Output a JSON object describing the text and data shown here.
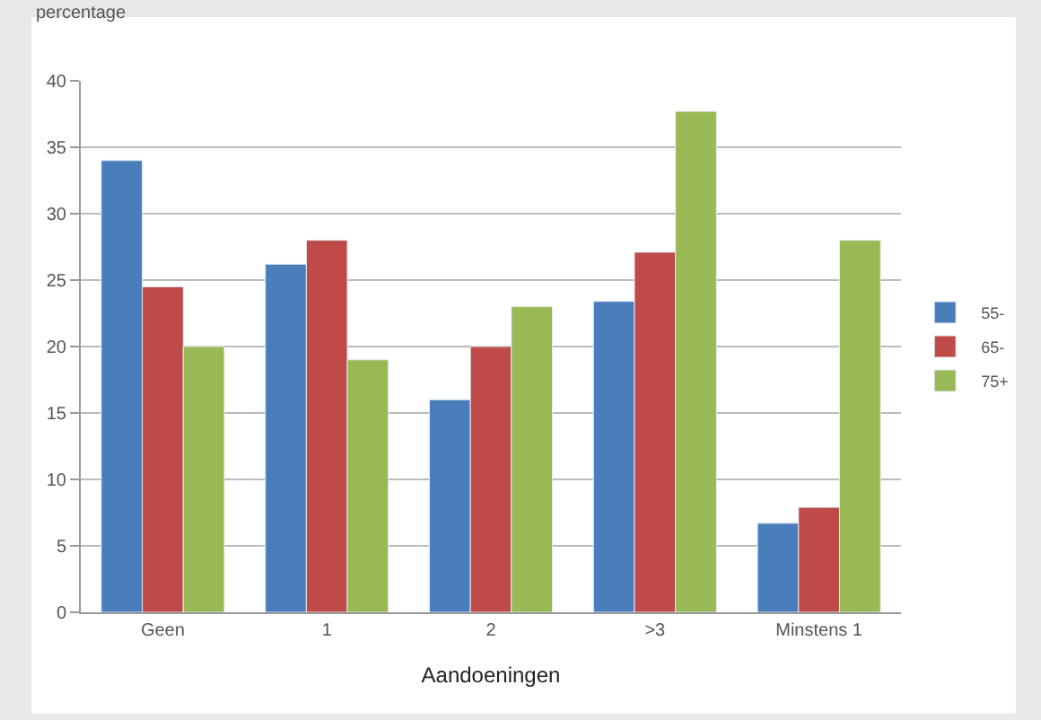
{
  "chart_data": {
    "type": "bar",
    "ylabel": "percentage",
    "xlabel": "Aandoeningen",
    "categories": [
      "Geen",
      "1",
      "2",
      ">3",
      "Minstens 1"
    ],
    "series": [
      {
        "name": "55-",
        "color": "#4a7ebb",
        "values": [
          34,
          26.2,
          16,
          23.4,
          6.7
        ]
      },
      {
        "name": "65-",
        "color": "#be4b48",
        "values": [
          24.5,
          28,
          20,
          27.1,
          7.9
        ]
      },
      {
        "name": "75+",
        "color": "#98b954",
        "values": [
          20,
          19,
          23,
          37.7,
          28
        ]
      }
    ],
    "ylim": [
      0,
      40
    ],
    "yticks": [
      0,
      5,
      10,
      15,
      20,
      25,
      30,
      35,
      40
    ],
    "grid": "y",
    "legend": "right"
  }
}
